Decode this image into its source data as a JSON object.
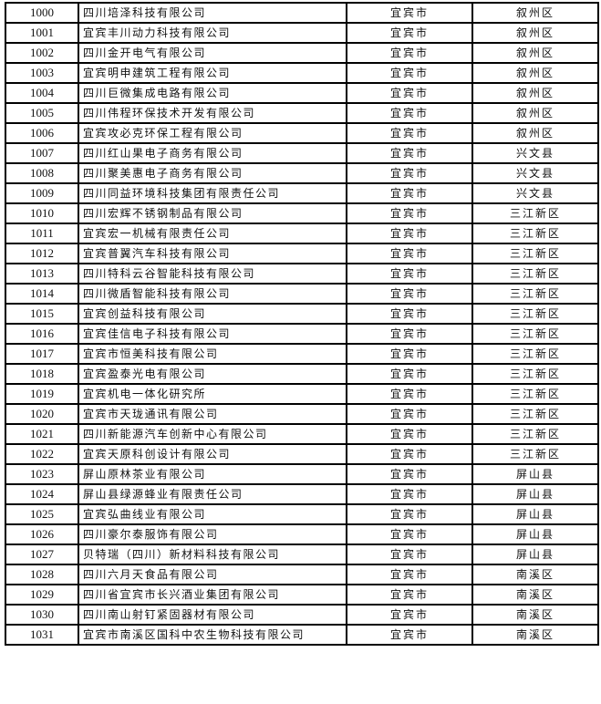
{
  "rows": [
    {
      "no": "1000",
      "name": "四川培泽科技有限公司",
      "city": "宜宾市",
      "district": "叙州区"
    },
    {
      "no": "1001",
      "name": "宜宾丰川动力科技有限公司",
      "city": "宜宾市",
      "district": "叙州区"
    },
    {
      "no": "1002",
      "name": "四川金开电气有限公司",
      "city": "宜宾市",
      "district": "叙州区"
    },
    {
      "no": "1003",
      "name": "宜宾明申建筑工程有限公司",
      "city": "宜宾市",
      "district": "叙州区"
    },
    {
      "no": "1004",
      "name": "四川巨微集成电路有限公司",
      "city": "宜宾市",
      "district": "叙州区"
    },
    {
      "no": "1005",
      "name": "四川伟程环保技术开发有限公司",
      "city": "宜宾市",
      "district": "叙州区"
    },
    {
      "no": "1006",
      "name": "宜宾攻必克环保工程有限公司",
      "city": "宜宾市",
      "district": "叙州区"
    },
    {
      "no": "1007",
      "name": "四川红山果电子商务有限公司",
      "city": "宜宾市",
      "district": "兴文县"
    },
    {
      "no": "1008",
      "name": "四川聚美惠电子商务有限公司",
      "city": "宜宾市",
      "district": "兴文县"
    },
    {
      "no": "1009",
      "name": "四川同益环境科技集团有限责任公司",
      "city": "宜宾市",
      "district": "兴文县"
    },
    {
      "no": "1010",
      "name": "四川宏辉不锈钢制品有限公司",
      "city": "宜宾市",
      "district": "三江新区"
    },
    {
      "no": "1011",
      "name": "宜宾宏一机械有限责任公司",
      "city": "宜宾市",
      "district": "三江新区"
    },
    {
      "no": "1012",
      "name": "宜宾普翼汽车科技有限公司",
      "city": "宜宾市",
      "district": "三江新区"
    },
    {
      "no": "1013",
      "name": "四川特科云谷智能科技有限公司",
      "city": "宜宾市",
      "district": "三江新区"
    },
    {
      "no": "1014",
      "name": "四川微盾智能科技有限公司",
      "city": "宜宾市",
      "district": "三江新区"
    },
    {
      "no": "1015",
      "name": "宜宾创益科技有限公司",
      "city": "宜宾市",
      "district": "三江新区"
    },
    {
      "no": "1016",
      "name": "宜宾佳信电子科技有限公司",
      "city": "宜宾市",
      "district": "三江新区"
    },
    {
      "no": "1017",
      "name": "宜宾市恒美科技有限公司",
      "city": "宜宾市",
      "district": "三江新区"
    },
    {
      "no": "1018",
      "name": "宜宾盈泰光电有限公司",
      "city": "宜宾市",
      "district": "三江新区"
    },
    {
      "no": "1019",
      "name": "宜宾机电一体化研究所",
      "city": "宜宾市",
      "district": "三江新区"
    },
    {
      "no": "1020",
      "name": "宜宾市天珑通讯有限公司",
      "city": "宜宾市",
      "district": "三江新区"
    },
    {
      "no": "1021",
      "name": "四川新能源汽车创新中心有限公司",
      "city": "宜宾市",
      "district": "三江新区"
    },
    {
      "no": "1022",
      "name": "宜宾天原科创设计有限公司",
      "city": "宜宾市",
      "district": "三江新区"
    },
    {
      "no": "1023",
      "name": "屏山原林茶业有限公司",
      "city": "宜宾市",
      "district": "屏山县"
    },
    {
      "no": "1024",
      "name": "屏山县绿源蜂业有限责任公司",
      "city": "宜宾市",
      "district": "屏山县"
    },
    {
      "no": "1025",
      "name": "宜宾弘曲线业有限公司",
      "city": "宜宾市",
      "district": "屏山县"
    },
    {
      "no": "1026",
      "name": "四川豪尔泰服饰有限公司",
      "city": "宜宾市",
      "district": "屏山县"
    },
    {
      "no": "1027",
      "name": "贝特瑞（四川）新材料科技有限公司",
      "city": "宜宾市",
      "district": "屏山县"
    },
    {
      "no": "1028",
      "name": "四川六月天食品有限公司",
      "city": "宜宾市",
      "district": "南溪区"
    },
    {
      "no": "1029",
      "name": "四川省宜宾市长兴酒业集团有限公司",
      "city": "宜宾市",
      "district": "南溪区"
    },
    {
      "no": "1030",
      "name": "四川南山射钉紧固器材有限公司",
      "city": "宜宾市",
      "district": "南溪区"
    },
    {
      "no": "1031",
      "name": "宜宾市南溪区国科中农生物科技有限公司",
      "city": "宜宾市",
      "district": "南溪区"
    }
  ]
}
